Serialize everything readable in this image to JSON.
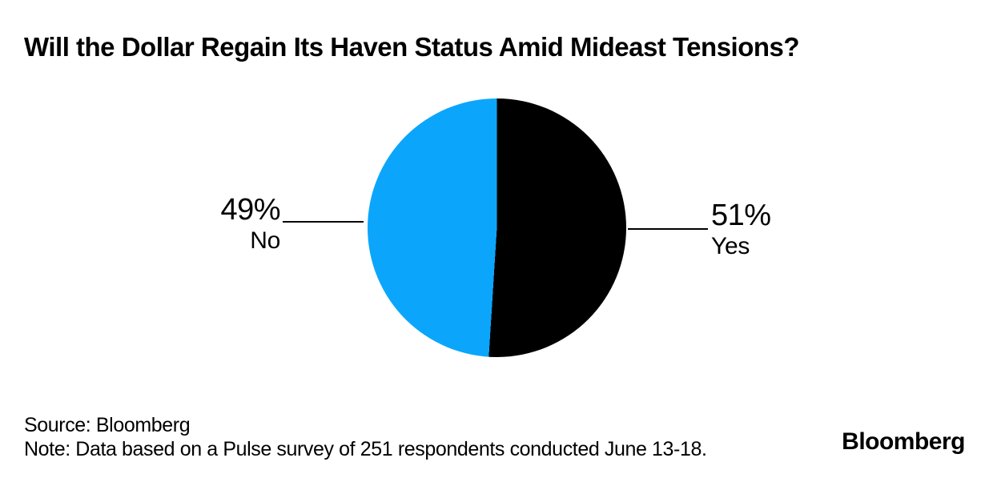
{
  "chart_data": {
    "type": "pie",
    "title": "Will the Dollar Regain Its Haven Status Amid Mideast Tensions?",
    "start_angle_deg": 0,
    "direction": "clockwise",
    "legend": "none",
    "label_style": "callout-lines",
    "slices": [
      {
        "label": "Yes",
        "value": 51,
        "pct_label": "51%",
        "color": "#000000",
        "label_side": "right"
      },
      {
        "label": "No",
        "value": 49,
        "pct_label": "49%",
        "color": "#0BA6FB",
        "label_side": "left"
      }
    ]
  },
  "footer": {
    "source": "Source: Bloomberg",
    "note": "Note: Data based on a Pulse survey of 251 respondents conducted June 13-18.",
    "brand": "Bloomberg"
  },
  "colors": {
    "background": "#FFFFFF",
    "text": "#000000",
    "slice_yes": "#000000",
    "slice_no": "#0BA6FB",
    "callout_line": "#000000"
  }
}
